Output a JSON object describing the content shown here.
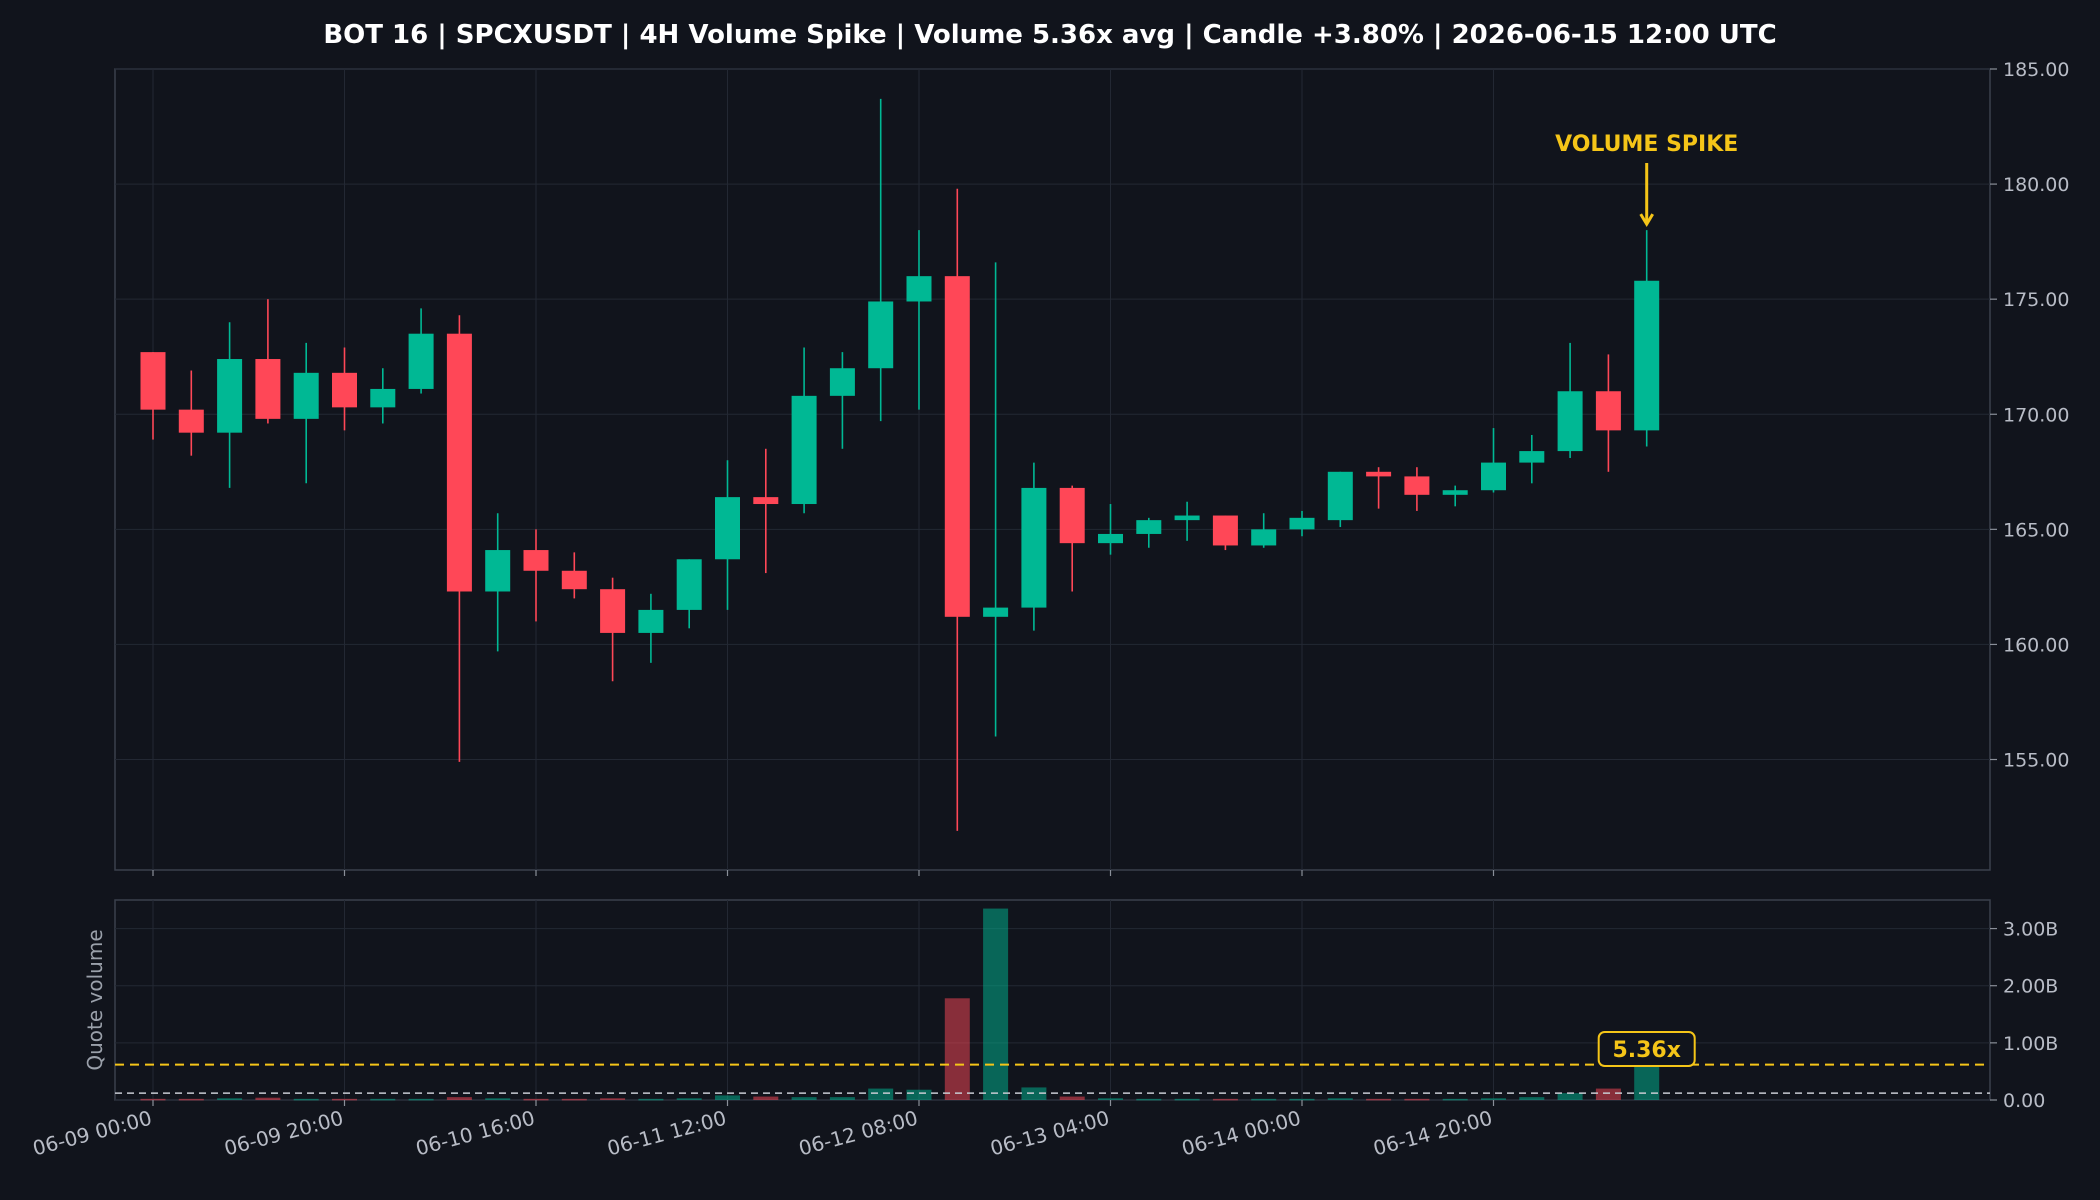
{
  "chart_data": {
    "type": "candlestick",
    "title": "BOT 16 | SPCXUSDT | 4H Volume Spike | Volume 5.36x avg | Candle +3.80% | 2026-06-15 12:00 UTC",
    "x_tick_labels": [
      "06-09 00:00",
      "06-09 20:00",
      "06-10 16:00",
      "06-11 12:00",
      "06-12 08:00",
      "06-13 04:00",
      "06-14 00:00",
      "06-14 20:00"
    ],
    "x_tick_candle_index": [
      0,
      5,
      10,
      15,
      20,
      25,
      30,
      35
    ],
    "price_axis": {
      "ylim": [
        150.2,
        185.0
      ],
      "ticks": [
        155,
        160,
        165,
        170,
        175,
        180,
        185
      ],
      "tick_labels": [
        "155.00",
        "160.00",
        "165.00",
        "170.00",
        "175.00",
        "180.00",
        "185.00"
      ]
    },
    "volume_axis": {
      "ylabel": "Quote volume",
      "ylim": [
        0,
        3.5
      ],
      "ticks": [
        0,
        1,
        2,
        3
      ],
      "tick_labels": [
        "0.00",
        "1.00B",
        "2.00B",
        "3.00B"
      ],
      "unit": "B"
    },
    "candles": [
      {
        "o": 172.7,
        "h": 172.7,
        "l": 168.9,
        "c": 170.2,
        "v": 0.02
      },
      {
        "o": 170.2,
        "h": 171.9,
        "l": 168.2,
        "c": 169.2,
        "v": 0.02
      },
      {
        "o": 169.2,
        "h": 174.0,
        "l": 166.8,
        "c": 172.4,
        "v": 0.03
      },
      {
        "o": 172.4,
        "h": 175.0,
        "l": 169.6,
        "c": 169.8,
        "v": 0.04
      },
      {
        "o": 169.8,
        "h": 173.1,
        "l": 167.0,
        "c": 171.8,
        "v": 0.02
      },
      {
        "o": 171.8,
        "h": 172.9,
        "l": 169.3,
        "c": 170.3,
        "v": 0.02
      },
      {
        "o": 170.3,
        "h": 172.0,
        "l": 169.6,
        "c": 171.1,
        "v": 0.02
      },
      {
        "o": 171.1,
        "h": 174.6,
        "l": 170.9,
        "c": 173.5,
        "v": 0.02
      },
      {
        "o": 173.5,
        "h": 174.3,
        "l": 154.9,
        "c": 162.3,
        "v": 0.05
      },
      {
        "o": 162.3,
        "h": 165.7,
        "l": 159.7,
        "c": 164.1,
        "v": 0.03
      },
      {
        "o": 164.1,
        "h": 165.0,
        "l": 161.0,
        "c": 163.2,
        "v": 0.02
      },
      {
        "o": 163.2,
        "h": 164.0,
        "l": 162.0,
        "c": 162.4,
        "v": 0.02
      },
      {
        "o": 162.4,
        "h": 162.9,
        "l": 158.4,
        "c": 160.5,
        "v": 0.03
      },
      {
        "o": 160.5,
        "h": 162.2,
        "l": 159.2,
        "c": 161.5,
        "v": 0.02
      },
      {
        "o": 161.5,
        "h": 163.7,
        "l": 160.7,
        "c": 163.7,
        "v": 0.03
      },
      {
        "o": 163.7,
        "h": 168.0,
        "l": 161.5,
        "c": 166.4,
        "v": 0.08
      },
      {
        "o": 166.4,
        "h": 168.5,
        "l": 163.1,
        "c": 166.1,
        "v": 0.06
      },
      {
        "o": 166.1,
        "h": 172.9,
        "l": 165.7,
        "c": 170.8,
        "v": 0.05
      },
      {
        "o": 170.8,
        "h": 172.7,
        "l": 168.5,
        "c": 172.0,
        "v": 0.05
      },
      {
        "o": 172.0,
        "h": 183.7,
        "l": 169.7,
        "c": 174.9,
        "v": 0.2
      },
      {
        "o": 174.9,
        "h": 178.0,
        "l": 170.2,
        "c": 176.0,
        "v": 0.18
      },
      {
        "o": 176.0,
        "h": 179.8,
        "l": 151.9,
        "c": 161.2,
        "v": 1.78
      },
      {
        "o": 161.2,
        "h": 176.6,
        "l": 156.0,
        "c": 161.6,
        "v": 3.35
      },
      {
        "o": 161.6,
        "h": 167.9,
        "l": 160.6,
        "c": 166.8,
        "v": 0.22
      },
      {
        "o": 166.8,
        "h": 166.9,
        "l": 162.3,
        "c": 164.4,
        "v": 0.06
      },
      {
        "o": 164.4,
        "h": 166.1,
        "l": 163.9,
        "c": 164.8,
        "v": 0.03
      },
      {
        "o": 164.8,
        "h": 165.5,
        "l": 164.2,
        "c": 165.4,
        "v": 0.02
      },
      {
        "o": 165.4,
        "h": 166.2,
        "l": 164.5,
        "c": 165.6,
        "v": 0.02
      },
      {
        "o": 165.6,
        "h": 165.6,
        "l": 164.1,
        "c": 164.3,
        "v": 0.02
      },
      {
        "o": 164.3,
        "h": 165.7,
        "l": 164.2,
        "c": 165.0,
        "v": 0.02
      },
      {
        "o": 165.0,
        "h": 165.8,
        "l": 164.7,
        "c": 165.5,
        "v": 0.02
      },
      {
        "o": 165.4,
        "h": 167.5,
        "l": 165.1,
        "c": 167.5,
        "v": 0.03
      },
      {
        "o": 167.5,
        "h": 167.7,
        "l": 165.9,
        "c": 167.3,
        "v": 0.02
      },
      {
        "o": 167.3,
        "h": 167.7,
        "l": 165.8,
        "c": 166.5,
        "v": 0.02
      },
      {
        "o": 166.5,
        "h": 166.9,
        "l": 166.0,
        "c": 166.7,
        "v": 0.02
      },
      {
        "o": 166.7,
        "h": 169.4,
        "l": 166.6,
        "c": 167.9,
        "v": 0.03
      },
      {
        "o": 167.9,
        "h": 169.1,
        "l": 167.0,
        "c": 168.4,
        "v": 0.05
      },
      {
        "o": 168.4,
        "h": 173.1,
        "l": 168.1,
        "c": 171.0,
        "v": 0.12
      },
      {
        "o": 171.0,
        "h": 172.6,
        "l": 167.5,
        "c": 169.3,
        "v": 0.2
      },
      {
        "o": 169.3,
        "h": 178.0,
        "l": 168.6,
        "c": 175.8,
        "v": 0.62
      }
    ],
    "average_volume_line": 0.62,
    "baseline_volume_line": 0.12,
    "annotations": {
      "spike_label": "VOLUME SPIKE",
      "spike_candle_index": 39,
      "ratio_badge": "5.36x"
    },
    "grid": true,
    "colors": {
      "background": "#11141c",
      "up": "#00b894",
      "down": "#ff4757",
      "accent": "#f5c518",
      "grid": "#232833",
      "frame": "#3a404c",
      "baseline": "#c8cbd2"
    }
  }
}
